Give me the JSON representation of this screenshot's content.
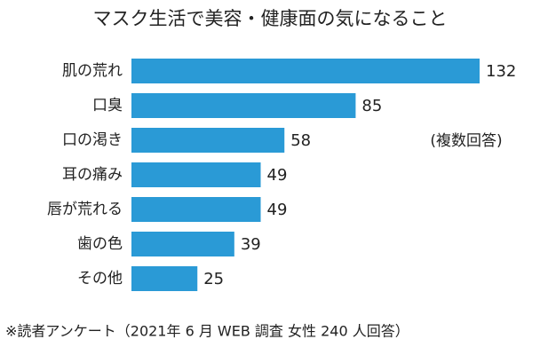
{
  "chart_data": {
    "type": "bar",
    "orientation": "horizontal",
    "title": "マスク生活で美容・健康面の気になること",
    "note": "(複数回答)",
    "footnote": "※読者アンケート（2021年 6 月 WEB 調査 女性 240 人回答）",
    "categories": [
      "肌の荒れ",
      "口臭",
      "口の渇き",
      "耳の痛み",
      "唇が荒れる",
      "歯の色",
      "その他"
    ],
    "values": [
      132,
      85,
      58,
      49,
      49,
      39,
      25
    ],
    "color": "#2a9ad6"
  }
}
